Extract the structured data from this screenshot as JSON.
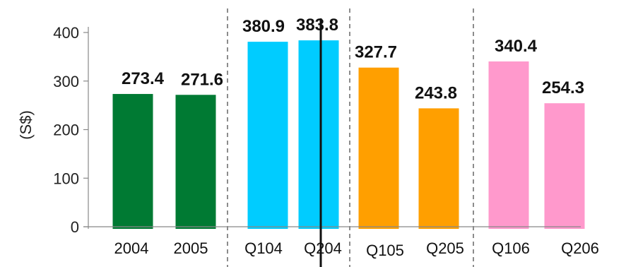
{
  "chart_data": {
    "type": "bar",
    "ylabel": "(S$)",
    "xlabel": "",
    "ylim": [
      0,
      400
    ],
    "yticks": [
      0,
      100,
      200,
      300,
      400
    ],
    "grid": false,
    "categories": [
      "2004",
      "2005",
      "Q104",
      "Q204",
      "Q105",
      "Q205",
      "Q106",
      "Q206"
    ],
    "values": [
      273.4,
      271.6,
      380.9,
      383.8,
      327.7,
      243.8,
      340.4,
      254.3
    ],
    "value_labels": [
      "273.4",
      "271.6",
      "380.9",
      "383.8",
      "327.7",
      "243.8",
      "340.4",
      "254.3"
    ],
    "colors": [
      "#007a33",
      "#007a33",
      "#00ccff",
      "#00ccff",
      "#ff9f00",
      "#ff9f00",
      "#ff99cc",
      "#ff99cc"
    ]
  }
}
